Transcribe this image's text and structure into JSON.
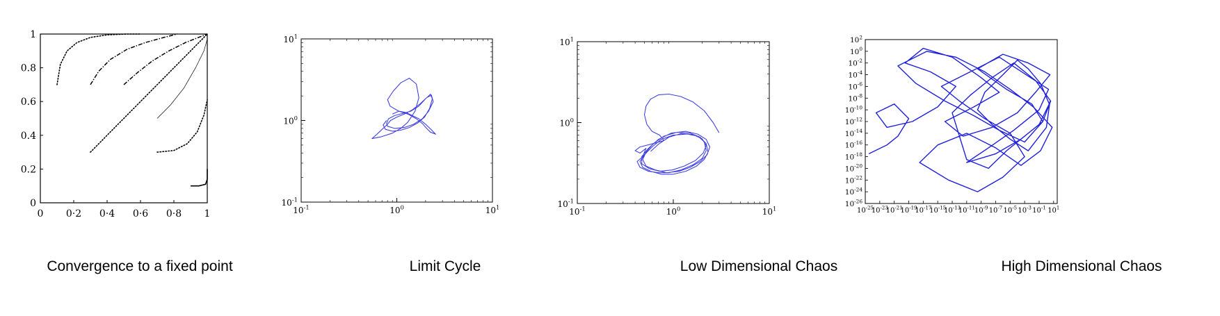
{
  "colors": {
    "trajectory": "#1f1fdc",
    "axes": "#000000",
    "background": "#ffffff"
  },
  "captions": [
    "Convergence to a fixed point",
    "Limit Cycle",
    "Low Dimensional Chaos",
    "High Dimensional Chaos"
  ],
  "chart_data": [
    {
      "type": "line",
      "title": "",
      "xlabel": "",
      "ylabel": "",
      "xlim": [
        0,
        1
      ],
      "ylim": [
        0,
        1
      ],
      "x_ticks": [
        "0",
        "0·2",
        "0·4",
        "0·6",
        "0·8",
        "1"
      ],
      "y_ticks": [
        "0",
        "0.2",
        "0.4",
        "0.6",
        "0.8",
        "1"
      ],
      "grid": false,
      "series": [
        {
          "style": "dotted",
          "x": [
            0.1,
            0.12,
            0.16,
            0.22,
            0.3,
            0.4,
            0.52,
            0.6
          ],
          "y": [
            0.7,
            0.82,
            0.9,
            0.95,
            0.98,
            0.995,
            1.0,
            1.0
          ]
        },
        {
          "style": "dashdot",
          "x": [
            0.3,
            0.35,
            0.42,
            0.52,
            0.63,
            0.74,
            0.82
          ],
          "y": [
            0.7,
            0.78,
            0.85,
            0.91,
            0.95,
            0.98,
            1.0
          ]
        },
        {
          "style": "dashdot",
          "x": [
            0.5,
            0.58,
            0.67,
            0.77,
            0.87,
            1.0
          ],
          "y": [
            0.7,
            0.77,
            0.84,
            0.9,
            0.95,
            1.0
          ]
        },
        {
          "style": "dotted",
          "x": [
            0.3,
            0.45,
            0.6,
            0.75,
            0.88,
            1.0
          ],
          "y": [
            0.3,
            0.45,
            0.6,
            0.75,
            0.88,
            1.0
          ]
        },
        {
          "style": "thin",
          "x": [
            0.7,
            0.78,
            0.86,
            0.93,
            0.98,
            1.0
          ],
          "y": [
            0.5,
            0.58,
            0.68,
            0.8,
            0.9,
            0.97
          ]
        },
        {
          "style": "dotted",
          "x": [
            0.7,
            0.8,
            0.88,
            0.94,
            0.98,
            1.0
          ],
          "y": [
            0.3,
            0.31,
            0.35,
            0.42,
            0.52,
            0.61
          ]
        },
        {
          "style": "solid",
          "x": [
            0.9,
            0.95,
            0.99,
            1.0,
            1.0
          ],
          "y": [
            0.1,
            0.1,
            0.11,
            0.14,
            0.2
          ]
        }
      ]
    },
    {
      "type": "line",
      "title": "",
      "xscale": "log",
      "yscale": "log",
      "xlim": [
        0.1,
        10
      ],
      "ylim": [
        0.1,
        10
      ],
      "x_ticks": [
        "10^-1",
        "10^0",
        "10^1"
      ],
      "y_ticks": [
        "10^-1",
        "10^0",
        "10^1"
      ],
      "grid": false,
      "series": [
        {
          "name": "",
          "x": [
            0.78,
            0.72,
            0.76,
            0.9,
            1.1,
            1.35,
            1.65,
            1.95,
            2.2,
            2.35,
            2.25,
            2.0,
            1.7,
            1.4,
            1.15,
            0.95,
            0.82,
            0.78,
            0.8,
            0.95,
            1.2,
            1.5,
            1.85,
            2.15,
            2.4,
            2.3,
            2.05,
            1.75,
            1.45,
            1.2,
            1.0,
            0.86,
            0.8,
            0.62,
            0.55,
            0.68,
            0.9,
            1.1,
            1.3,
            1.55,
            1.7,
            1.6,
            1.35,
            1.1,
            0.92,
            0.8,
            0.85,
            1.05,
            1.3,
            1.6,
            1.85,
            2.05,
            2.25,
            2.55,
            2.35,
            2.0,
            1.7,
            1.45,
            1.25,
            1.05,
            0.9
          ],
          "y": [
            1.0,
            0.88,
            0.78,
            0.74,
            0.76,
            0.82,
            0.93,
            1.1,
            1.4,
            1.85,
            2.1,
            1.85,
            1.5,
            1.3,
            1.22,
            1.15,
            1.05,
            0.92,
            0.85,
            0.8,
            0.82,
            0.9,
            1.05,
            1.3,
            1.7,
            2.05,
            1.9,
            1.6,
            1.35,
            1.2,
            1.1,
            1.0,
            0.9,
            0.68,
            0.6,
            0.63,
            0.7,
            0.8,
            0.95,
            1.3,
            1.9,
            2.8,
            3.3,
            2.9,
            2.3,
            1.8,
            1.5,
            1.3,
            1.2,
            1.05,
            0.92,
            0.8,
            0.72,
            0.68,
            0.75,
            0.9,
            1.05,
            1.15,
            1.25,
            1.3,
            1.2
          ]
        }
      ]
    },
    {
      "type": "line",
      "title": "",
      "xscale": "log",
      "yscale": "log",
      "xlim": [
        0.1,
        10
      ],
      "ylim": [
        0.1,
        10
      ],
      "x_ticks": [
        "10^-1",
        "10^0",
        "10^1"
      ],
      "y_ticks": [
        "10^-1",
        "10^0",
        "10^1"
      ],
      "grid": false,
      "series": [
        {
          "name": "",
          "x": [
            3.0,
            2.6,
            2.1,
            1.6,
            1.2,
            0.9,
            0.7,
            0.58,
            0.52,
            0.5,
            0.53,
            0.6,
            0.72,
            0.8,
            0.62,
            0.45,
            0.4,
            0.45,
            0.52,
            0.48,
            0.42,
            0.45,
            0.55,
            0.7,
            0.9,
            1.2,
            1.6,
            2.0,
            2.2,
            2.1,
            1.8,
            1.4,
            1.0,
            0.75,
            0.6,
            0.5,
            0.45,
            0.48,
            0.58,
            0.75,
            1.0,
            1.35,
            1.75,
            2.1,
            2.3,
            2.2,
            1.9,
            1.5,
            1.1,
            0.8,
            0.62,
            0.52,
            0.48,
            0.52,
            0.65,
            0.85,
            1.15,
            1.5,
            1.9,
            2.25,
            2.4,
            2.2,
            1.8,
            1.35,
            0.95,
            0.7,
            0.55,
            0.47,
            0.47,
            0.56,
            0.72,
            0.98,
            1.3,
            1.7,
            2.05,
            2.2,
            2.0,
            1.6,
            1.2,
            0.9,
            0.7,
            0.58
          ],
          "y": [
            0.75,
            1.0,
            1.4,
            1.8,
            2.1,
            2.25,
            2.2,
            1.95,
            1.6,
            1.25,
            0.95,
            0.78,
            0.7,
            0.6,
            0.55,
            0.5,
            0.45,
            0.42,
            0.48,
            0.38,
            0.33,
            0.28,
            0.25,
            0.24,
            0.24,
            0.26,
            0.3,
            0.36,
            0.45,
            0.58,
            0.68,
            0.72,
            0.7,
            0.62,
            0.5,
            0.4,
            0.33,
            0.28,
            0.25,
            0.23,
            0.23,
            0.25,
            0.29,
            0.35,
            0.43,
            0.55,
            0.66,
            0.74,
            0.76,
            0.68,
            0.55,
            0.43,
            0.35,
            0.29,
            0.26,
            0.24,
            0.25,
            0.28,
            0.33,
            0.4,
            0.5,
            0.62,
            0.72,
            0.78,
            0.74,
            0.62,
            0.48,
            0.38,
            0.31,
            0.27,
            0.25,
            0.26,
            0.29,
            0.34,
            0.42,
            0.52,
            0.63,
            0.71,
            0.73,
            0.66,
            0.54,
            0.44
          ]
        }
      ]
    },
    {
      "type": "line",
      "title": "",
      "xscale": "log",
      "yscale": "log",
      "xlim_exp": [
        -25,
        1.5
      ],
      "ylim_exp": [
        -26,
        2
      ],
      "x_ticks": [
        "10^-25",
        "10^-23",
        "10^-21",
        "10^-19",
        "10^-17",
        "10^-15",
        "10^-13",
        "10^-11",
        "10^-9",
        "10^-7",
        "10^-5",
        "10^-3",
        "10^-1",
        "10^1"
      ],
      "x_tick_exps": [
        -25,
        -23,
        -21,
        -19,
        -17,
        -15,
        -13,
        -11,
        -9,
        -7,
        -5,
        -3,
        -1,
        1
      ],
      "y_ticks": [
        "10^-26",
        "10^-24",
        "10^-22",
        "10^-20",
        "10^-18",
        "10^-16",
        "10^-14",
        "10^-12",
        "10^-10",
        "10^-8",
        "10^-6",
        "10^-4",
        "10^-2",
        "10^0",
        "10^2"
      ],
      "y_tick_exps": [
        -26,
        -24,
        -22,
        -20,
        -18,
        -16,
        -14,
        -12,
        -10,
        -8,
        -6,
        -4,
        -2,
        0,
        2
      ],
      "grid": false,
      "series": [
        {
          "name": "",
          "x_exp": [
            -24.5,
            -22.0,
            -20.5,
            -19.0,
            -21.0,
            -23.5,
            -22.0,
            -18.5,
            -15.0,
            -12.5,
            -16.0,
            -19.5,
            -17.0,
            -13.0,
            -9.0,
            -6.5,
            -10.0,
            -14.0,
            -11.5,
            -7.5,
            -4.0,
            -1.5,
            0.5,
            -2.5,
            -6.0,
            -9.5,
            -5.5,
            -2.0,
            -0.5,
            -3.5,
            -7.0,
            -11.0,
            -8.0,
            -4.5,
            -1.0,
            0.3,
            -2.8,
            -6.5,
            -10.5,
            -14.5,
            -12.0,
            -8.5,
            -5.0,
            -3.0,
            -6.0,
            -9.5,
            -13.5,
            -17.5,
            -15.0,
            -11.0,
            -7.0,
            -3.5,
            -0.8,
            0.8,
            -1.8,
            -5.0,
            -8.5,
            -12.5,
            -16.5,
            -20.5,
            -18.0,
            -14.0,
            -10.0,
            -6.5,
            -3.0,
            -0.5,
            0.6,
            -1.5,
            -4.5,
            -7.5,
            -10.5,
            -13.0,
            -11.0,
            -8.0,
            -5.5,
            -3.0,
            -1.0,
            0.4,
            -0.8,
            -2.5,
            -4.0,
            -6.0,
            -8.5,
            -9.5,
            -7.5,
            -5.0,
            -2.5,
            0.0,
            0.5
          ],
          "y_exp": [
            -17.5,
            -16.0,
            -14.5,
            -11.5,
            -9.0,
            -10.5,
            -13.0,
            -12.0,
            -9.5,
            -6.0,
            -3.5,
            -2.0,
            0.5,
            -1.0,
            -4.5,
            -7.0,
            -9.5,
            -12.0,
            -14.5,
            -13.0,
            -10.5,
            -7.0,
            -4.0,
            -2.0,
            -0.5,
            -3.0,
            -6.5,
            -9.0,
            -12.0,
            -15.0,
            -17.5,
            -19.0,
            -16.5,
            -13.5,
            -10.0,
            -6.5,
            -4.0,
            -1.0,
            -3.5,
            -6.0,
            -8.5,
            -11.5,
            -14.0,
            -18.0,
            -21.5,
            -24.0,
            -22.0,
            -19.0,
            -16.0,
            -14.0,
            -16.5,
            -19.5,
            -17.0,
            -13.0,
            -9.5,
            -6.5,
            -3.5,
            -1.0,
            0.0,
            -2.5,
            -5.5,
            -8.5,
            -11.0,
            -13.5,
            -15.5,
            -12.0,
            -8.5,
            -5.0,
            -2.0,
            -4.5,
            -7.5,
            -10.5,
            -18.5,
            -20.0,
            -17.0,
            -14.5,
            -12.5,
            -9.0,
            -5.5,
            -3.0,
            -1.5,
            -4.0,
            -7.0,
            -10.0,
            -12.5,
            -15.0,
            -17.0,
            -13.0,
            -8.5
          ]
        }
      ]
    }
  ]
}
